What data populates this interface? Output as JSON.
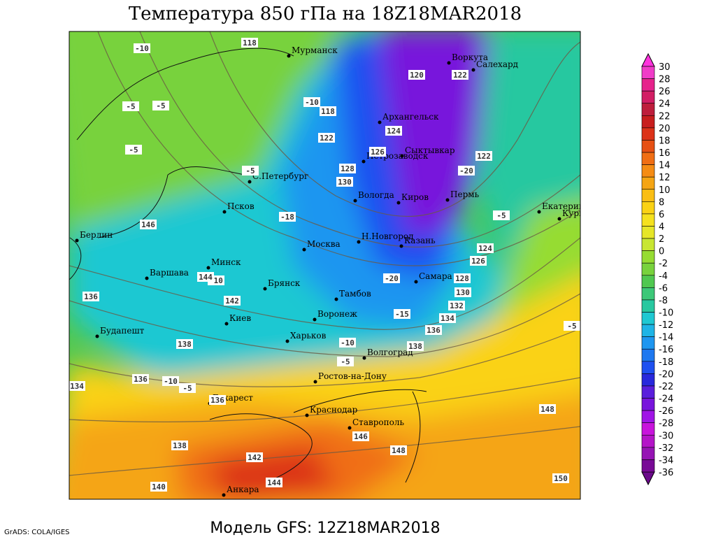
{
  "header": {
    "title": "Температура 850 гПа на 18Z18MAR2018"
  },
  "footer": {
    "model": "Модель GFS: 12Z18MAR2018",
    "credit": "GrADS: COLA/IGES"
  },
  "cities": [
    "Мурманск",
    "Воркута",
    "Салехард",
    "Архангельск",
    "Петрозаводск",
    "Сыктывкар",
    "С.Петербург",
    "Вологда",
    "Киров",
    "Пермь",
    "Екатеринбург",
    "Курган",
    "Псков",
    "Берлин",
    "Москва",
    "Н.Новгород",
    "Казань",
    "Минск",
    "Варшава",
    "Брянск",
    "Самара",
    "Тамбов",
    "Киев",
    "Воронеж",
    "Будапешт",
    "Харьков",
    "Волгоград",
    "Ростов-на-Дону",
    "Бухарест",
    "Краснодар",
    "Ставрополь",
    "Анкара"
  ],
  "contour_labels": [
    118,
    -10,
    120,
    122,
    -5,
    -5,
    -10,
    118,
    124,
    122,
    -5,
    122,
    126,
    -5,
    128,
    -20,
    130,
    -5,
    146,
    -18,
    124,
    126,
    -10,
    144,
    -20,
    128,
    130,
    136,
    142,
    132,
    134,
    -15,
    138,
    136,
    -10,
    138,
    -5,
    136,
    136,
    -10,
    -5,
    134,
    148,
    138,
    142,
    140,
    144,
    146,
    148,
    -5,
    150
  ],
  "colorbar": {
    "ticks": [
      30,
      28,
      26,
      24,
      22,
      20,
      18,
      16,
      14,
      12,
      10,
      8,
      6,
      4,
      2,
      0,
      -2,
      -4,
      -6,
      -8,
      -10,
      -12,
      -14,
      -16,
      -18,
      -20,
      -22,
      -24,
      -26,
      -28,
      -30,
      -32,
      -34,
      -36
    ],
    "colors": [
      "#f03cc8",
      "#e6238c",
      "#d21e64",
      "#be1e3c",
      "#c81e1e",
      "#dc3219",
      "#e65014",
      "#f06e14",
      "#f58c14",
      "#f5a514",
      "#fabe14",
      "#fad214",
      "#f5e11e",
      "#e6e628",
      "#c8e632",
      "#96dc32",
      "#78d23c",
      "#50c850",
      "#3cc878",
      "#28c8a0",
      "#1ec8d2",
      "#1eb4e6",
      "#1e96f0",
      "#1e78f0",
      "#1e50f0",
      "#2828dc",
      "#5a1edc",
      "#7814dc",
      "#a014e6",
      "#c814dc",
      "#b414c8",
      "#9614b4",
      "#780a96"
    ],
    "top_color": "#ff33dd",
    "bottom_color": "#6a0a8a"
  }
}
